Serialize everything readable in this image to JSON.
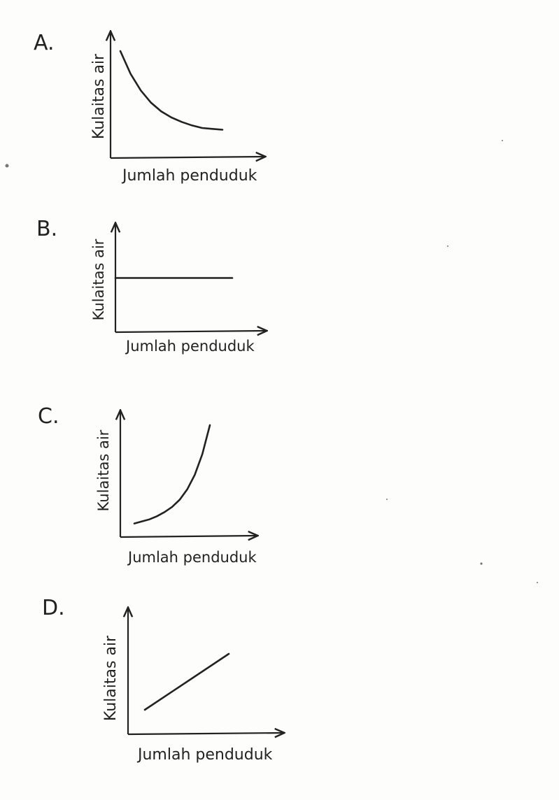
{
  "options": [
    {
      "letter": "A.",
      "chart_data": {
        "type": "line",
        "xlabel": "Jumlah penduduk",
        "ylabel": "Kulaitas air",
        "curve": "decreasing-convex",
        "series": [
          {
            "x": [
              0,
              1,
              2,
              3,
              4,
              5,
              6,
              7,
              8,
              9,
              10
            ],
            "values": [
              100,
              74,
              55,
              41,
              31,
              24,
              19,
              15,
              12,
              11,
              10
            ]
          }
        ]
      }
    },
    {
      "letter": "B.",
      "chart_data": {
        "type": "line",
        "xlabel": "Jumlah penduduk",
        "ylabel": "Kulaitas air",
        "curve": "constant",
        "series": [
          {
            "x": [
              0,
              10
            ],
            "values": [
              50,
              50
            ]
          }
        ]
      }
    },
    {
      "letter": "C.",
      "chart_data": {
        "type": "line",
        "xlabel": "Jumlah penduduk",
        "ylabel": "Kulaitas air",
        "curve": "increasing-convex",
        "series": [
          {
            "x": [
              0,
              1,
              2,
              3,
              4,
              5,
              6,
              7,
              8,
              9,
              10
            ],
            "values": [
              5,
              7,
              9,
              12,
              16,
              21,
              28,
              38,
              52,
              72,
              100
            ]
          }
        ]
      }
    },
    {
      "letter": "D.",
      "chart_data": {
        "type": "line",
        "xlabel": "Jumlah penduduk",
        "ylabel": "Kulaitas air",
        "curve": "increasing-linear",
        "series": [
          {
            "x": [
              0,
              10
            ],
            "values": [
              10,
              90
            ]
          }
        ]
      }
    }
  ]
}
